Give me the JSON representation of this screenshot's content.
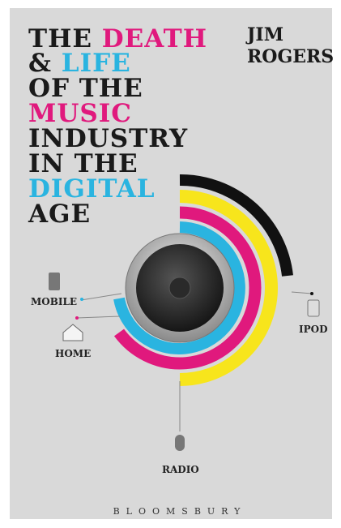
{
  "cover": {
    "title_lines": [
      [
        "THE",
        "DEATH"
      ],
      [
        "&",
        "LIFE"
      ],
      [
        "OF THE"
      ],
      [
        "MUSIC"
      ],
      [
        "INDUSTRY"
      ],
      [
        "IN THE"
      ],
      [
        "DIGITAL"
      ],
      [
        "AGE"
      ]
    ],
    "author_lines": [
      "JIM",
      "ROGERS"
    ],
    "labels": {
      "mobile": "MOBILE",
      "home": "HOME",
      "ipod": "IPOD",
      "radio": "RADIO"
    },
    "publisher": "BLOOMSBURY"
  }
}
